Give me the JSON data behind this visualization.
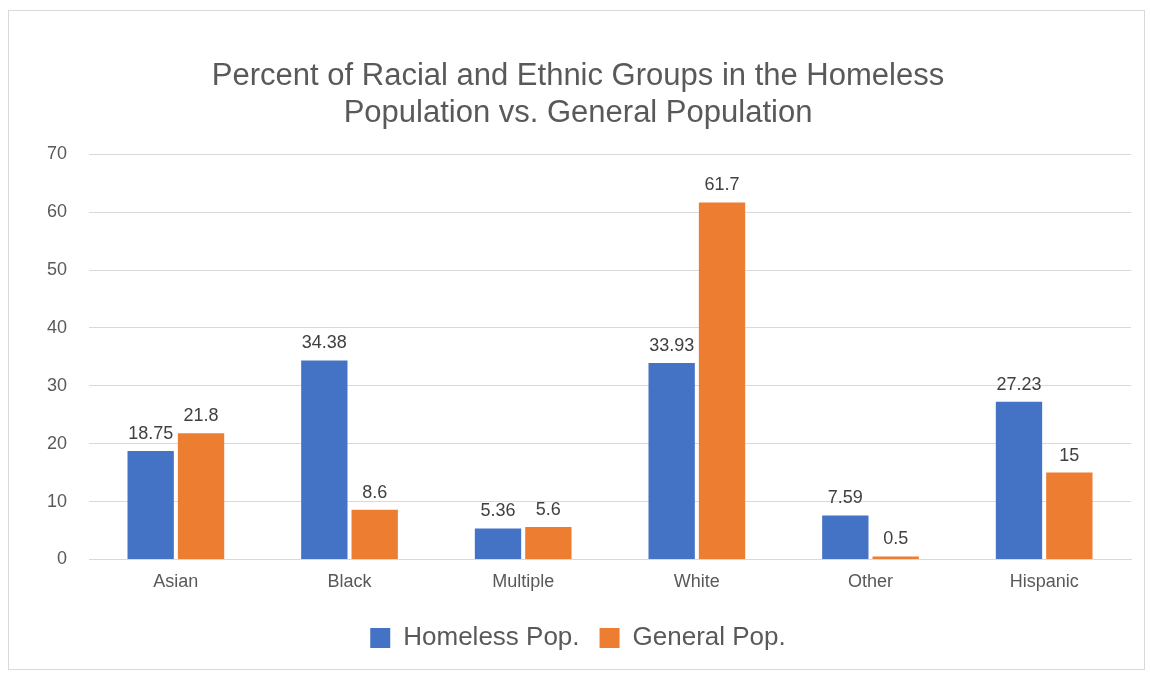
{
  "chart_data": {
    "type": "bar",
    "title": "Percent of Racial and Ethnic Groups in the Homeless Population vs. General Population",
    "categories": [
      "Asian",
      "Black",
      "Multiple",
      "White",
      "Other",
      "Hispanic"
    ],
    "series": [
      {
        "name": "Homeless Pop.",
        "color": "#4472c4",
        "values": [
          18.75,
          34.38,
          5.36,
          33.93,
          7.59,
          27.23
        ]
      },
      {
        "name": "General Pop.",
        "color": "#ed7d31",
        "values": [
          21.8,
          8.6,
          5.6,
          61.7,
          0.5,
          15
        ]
      }
    ],
    "ylim": [
      0,
      70
    ],
    "yticks": [
      0,
      10,
      20,
      30,
      40,
      50,
      60,
      70
    ],
    "grid": "y",
    "legend": "bottom",
    "data_labels": true
  }
}
